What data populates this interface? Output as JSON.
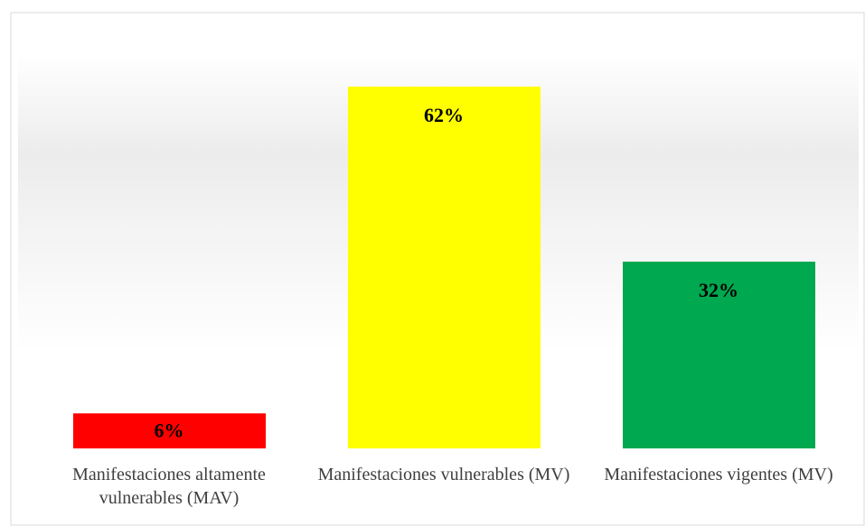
{
  "chart_data": {
    "type": "bar",
    "categories": [
      "Manifestaciones altamente vulnerables (MAV)",
      "Manifestaciones vulnerables (MV)",
      "Manifestaciones vigentes (MV)"
    ],
    "values": [
      6,
      62,
      32
    ],
    "value_labels": [
      "6%",
      "62%",
      "32%"
    ],
    "colors": [
      "#ff0000",
      "#ffff00",
      "#00a84f"
    ],
    "grid": false
  }
}
